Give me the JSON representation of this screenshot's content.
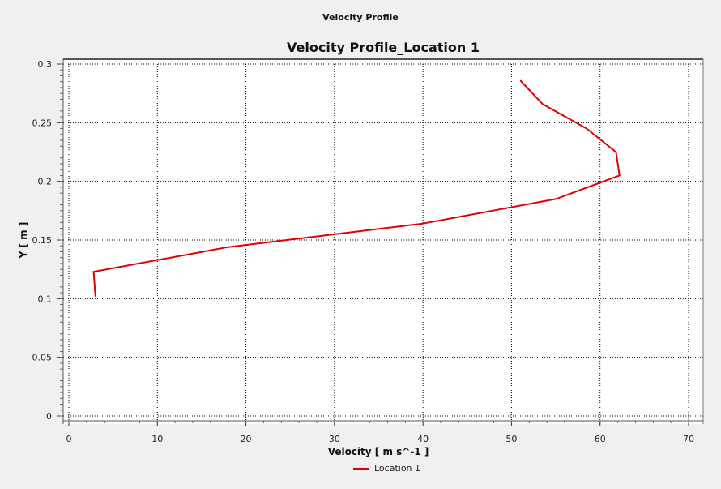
{
  "window": {
    "title": "Velocity Profile"
  },
  "chart_data": {
    "type": "line",
    "title": "Velocity Profile_Location 1",
    "xlabel": "Velocity [ m s^-1 ]",
    "ylabel": "Y [ m ]",
    "xlim": [
      0,
      70
    ],
    "ylim": [
      0,
      0.3
    ],
    "xticks": [
      "0",
      "10",
      "20",
      "30",
      "40",
      "50",
      "60",
      "70"
    ],
    "yticks": [
      "0",
      "0.05",
      "0.1",
      "0.15",
      "0.2",
      "0.25",
      "0.3"
    ],
    "grid": true,
    "legend_position": "bottom",
    "series": [
      {
        "name": "Location 1",
        "color": "#e00000",
        "x": [
          3.0,
          2.8,
          18.0,
          40.0,
          55.0,
          62.2,
          61.8,
          58.5,
          53.5,
          51.0
        ],
        "y": [
          0.102,
          0.123,
          0.144,
          0.164,
          0.185,
          0.205,
          0.225,
          0.245,
          0.266,
          0.286
        ]
      }
    ]
  }
}
